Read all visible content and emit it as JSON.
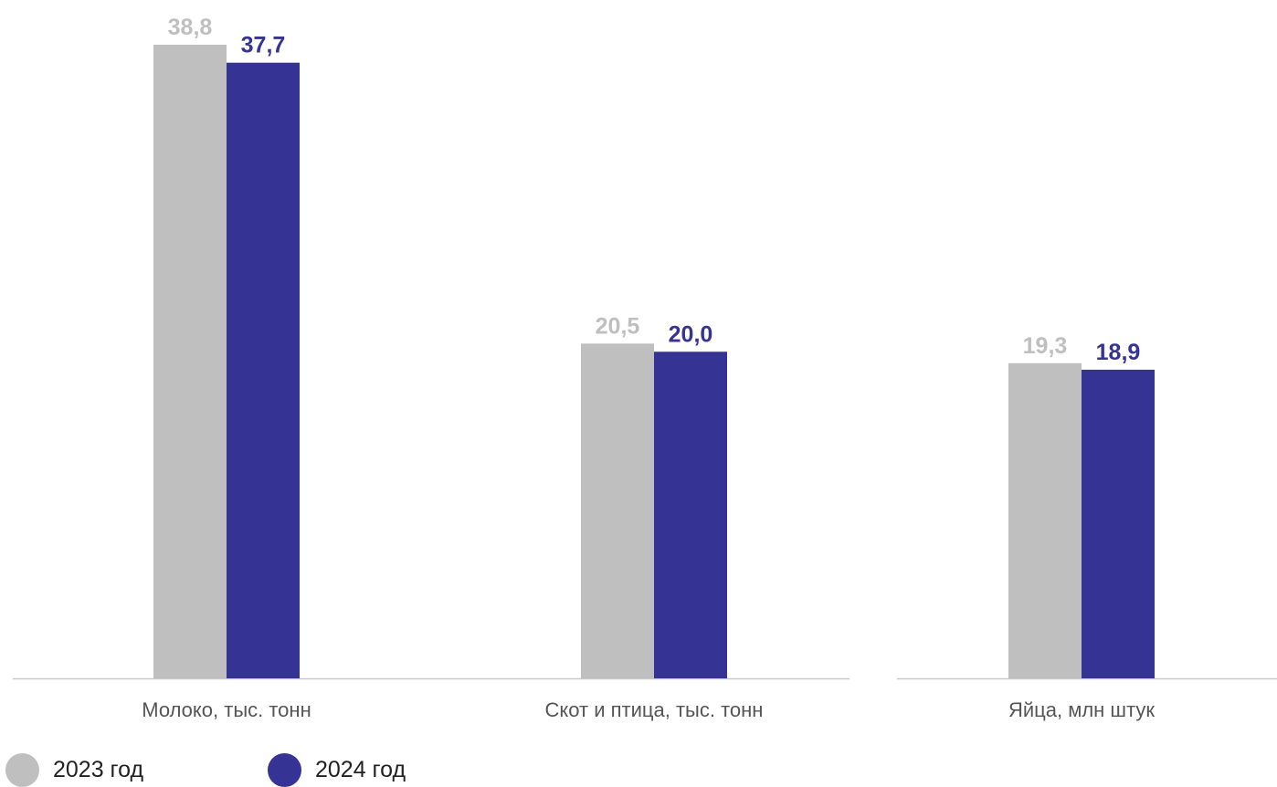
{
  "chart_data": {
    "type": "bar",
    "categories": [
      "Молоко, тыс. тонн",
      "Скот и птица, тыс. тонн",
      "Яйца, млн штук"
    ],
    "series": [
      {
        "name": "2023 год",
        "values": [
          38.8,
          20.5,
          19.3
        ],
        "labels": [
          "38,8",
          "20,5",
          "19,3"
        ],
        "color": "#bfbfbf"
      },
      {
        "name": "2024 год",
        "values": [
          37.7,
          20.0,
          18.9
        ],
        "labels": [
          "37,7",
          "20,0",
          "18,9"
        ],
        "color": "#353394"
      }
    ],
    "ylim": [
      0,
      38.8
    ],
    "grid": false,
    "legend_position": "bottom-left"
  }
}
